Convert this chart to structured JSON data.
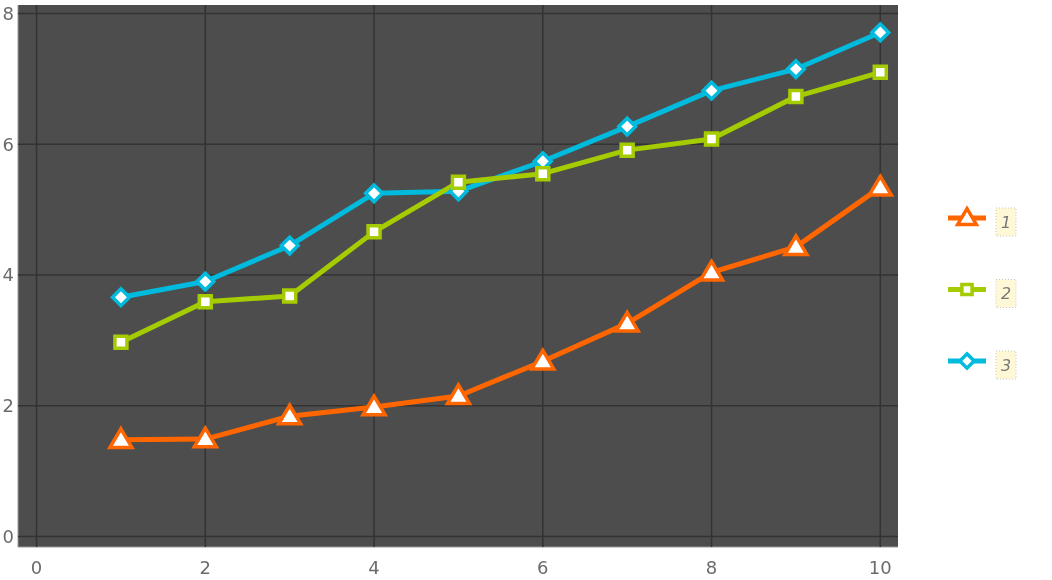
{
  "chart_data": {
    "type": "line",
    "x": [
      1,
      2,
      3,
      4,
      5,
      6,
      7,
      8,
      9,
      10
    ],
    "series": [
      {
        "name": "1",
        "color": "#ff6600",
        "marker": "triangle",
        "values": [
          1.48,
          1.49,
          1.84,
          1.98,
          2.15,
          2.68,
          3.26,
          4.04,
          4.43,
          5.34
        ]
      },
      {
        "name": "2",
        "color": "#a5cc00",
        "marker": "square",
        "values": [
          2.97,
          3.59,
          3.68,
          4.66,
          5.42,
          5.55,
          5.91,
          6.08,
          6.73,
          7.1
        ]
      },
      {
        "name": "3",
        "color": "#00bbdd",
        "marker": "diamond",
        "values": [
          3.66,
          3.9,
          4.45,
          5.25,
          5.28,
          5.74,
          6.27,
          6.82,
          7.15,
          7.71
        ]
      }
    ],
    "xlim": [
      -0.22,
      10.21
    ],
    "xticks": [
      0,
      2,
      4,
      6,
      8,
      10
    ],
    "ylim": [
      -0.16,
      8.13
    ],
    "yticks": [
      0,
      2,
      4,
      6,
      8
    ],
    "grid": true,
    "legend": "right",
    "line_style": "solid"
  }
}
